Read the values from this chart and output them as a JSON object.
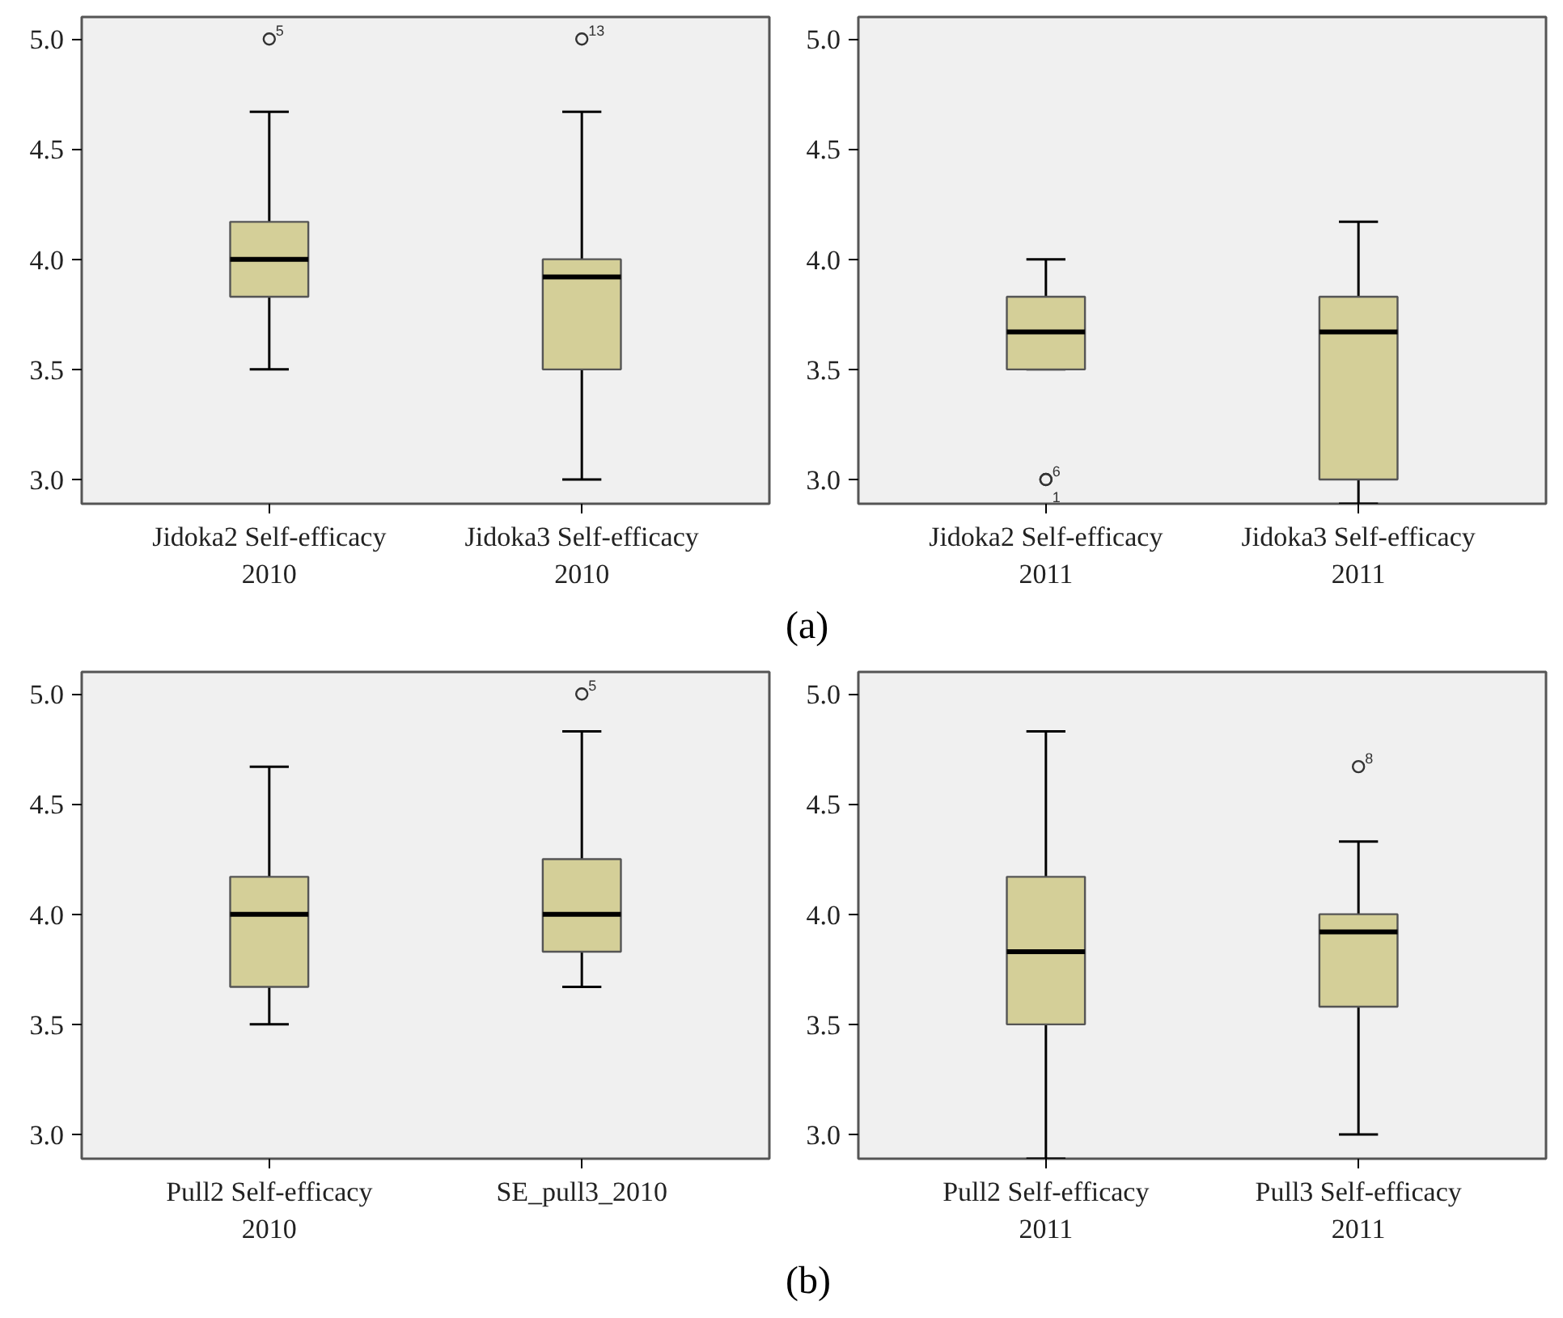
{
  "chart_data": [
    {
      "type": "box",
      "categories": [
        "Jidoka2 Self-efficacy\n2010",
        "Jidoka3 Self-efficacy\n2010"
      ],
      "ylim": [
        2.89,
        5.1
      ],
      "yticks": [
        {
          "value": 3,
          "label": "3.0"
        },
        {
          "value": 3.5,
          "label": "3.5"
        },
        {
          "value": 4,
          "label": "4.0"
        },
        {
          "value": 4.5,
          "label": "4.5"
        },
        {
          "value": 5,
          "label": "5.0"
        }
      ],
      "color": "#d4cf98",
      "boxes": [
        {
          "low": 3.5,
          "q1": 3.83,
          "median": 4.0,
          "q3": 4.17,
          "high": 4.67,
          "outliers": [
            5.0
          ]
        },
        {
          "low": 3.0,
          "q1": 3.5,
          "median": 3.92,
          "q3": 4.0,
          "high": 4.67,
          "outliers": [
            5.0
          ]
        }
      ],
      "annotations": [
        "5",
        "13"
      ]
    },
    {
      "type": "box",
      "categories": [
        "Jidoka2 Self-efficacy\n2011",
        "Jidoka3 Self-efficacy\n2011"
      ],
      "ylim": [
        2.89,
        5.1
      ],
      "yticks": [
        {
          "value": 3,
          "label": "3.0"
        },
        {
          "value": 3.5,
          "label": "3.5"
        },
        {
          "value": 4,
          "label": "4.0"
        },
        {
          "value": 4.5,
          "label": "4.5"
        },
        {
          "value": 5,
          "label": "5.0"
        }
      ],
      "color": "#d4cf98",
      "boxes": [
        {
          "low": 3.5,
          "q1": 3.5,
          "median": 3.67,
          "q3": 3.83,
          "high": 4.0,
          "outliers": [
            3.0,
            3.0
          ]
        },
        {
          "low": 2.89,
          "q1": 3.0,
          "median": 3.67,
          "q3": 3.83,
          "high": 4.17
        }
      ],
      "annotations": [
        "6",
        "1",
        "(a)"
      ]
    },
    {
      "type": "box",
      "categories": [
        "Pull2 Self-efficacy\n2010",
        "SE_pull3_2010"
      ],
      "ylim": [
        2.89,
        5.1
      ],
      "yticks": [
        {
          "value": 3,
          "label": "3.0"
        },
        {
          "value": 3.5,
          "label": "3.5"
        },
        {
          "value": 4,
          "label": "4.0"
        },
        {
          "value": 4.5,
          "label": "4.5"
        },
        {
          "value": 5,
          "label": "5.0"
        }
      ],
      "color": "#d4cf98",
      "boxes": [
        {
          "low": 3.5,
          "q1": 3.67,
          "median": 4.0,
          "q3": 4.17,
          "high": 4.67
        },
        {
          "low": 3.67,
          "q1": 3.83,
          "median": 4.0,
          "q3": 4.25,
          "high": 4.83,
          "outliers": [
            5.0
          ]
        }
      ],
      "annotations": [
        "5"
      ]
    },
    {
      "type": "box",
      "categories": [
        "Pull2 Self-efficacy\n2011",
        "Pull3 Self-efficacy\n2011"
      ],
      "ylim": [
        2.89,
        5.1
      ],
      "yticks": [
        {
          "value": 3,
          "label": "3.0"
        },
        {
          "value": 3.5,
          "label": "3.5"
        },
        {
          "value": 4,
          "label": "4.0"
        },
        {
          "value": 4.5,
          "label": "4.5"
        },
        {
          "value": 5,
          "label": "5.0"
        }
      ],
      "color": "#d4cf98",
      "boxes": [
        {
          "low": 2.89,
          "q1": 3.5,
          "median": 3.83,
          "q3": 4.17,
          "high": 4.83
        },
        {
          "low": 3.0,
          "q1": 3.58,
          "median": 3.92,
          "q3": 4.0,
          "high": 4.33,
          "outliers": [
            4.67
          ]
        }
      ],
      "annotations": [
        "8",
        "(b)"
      ]
    }
  ]
}
